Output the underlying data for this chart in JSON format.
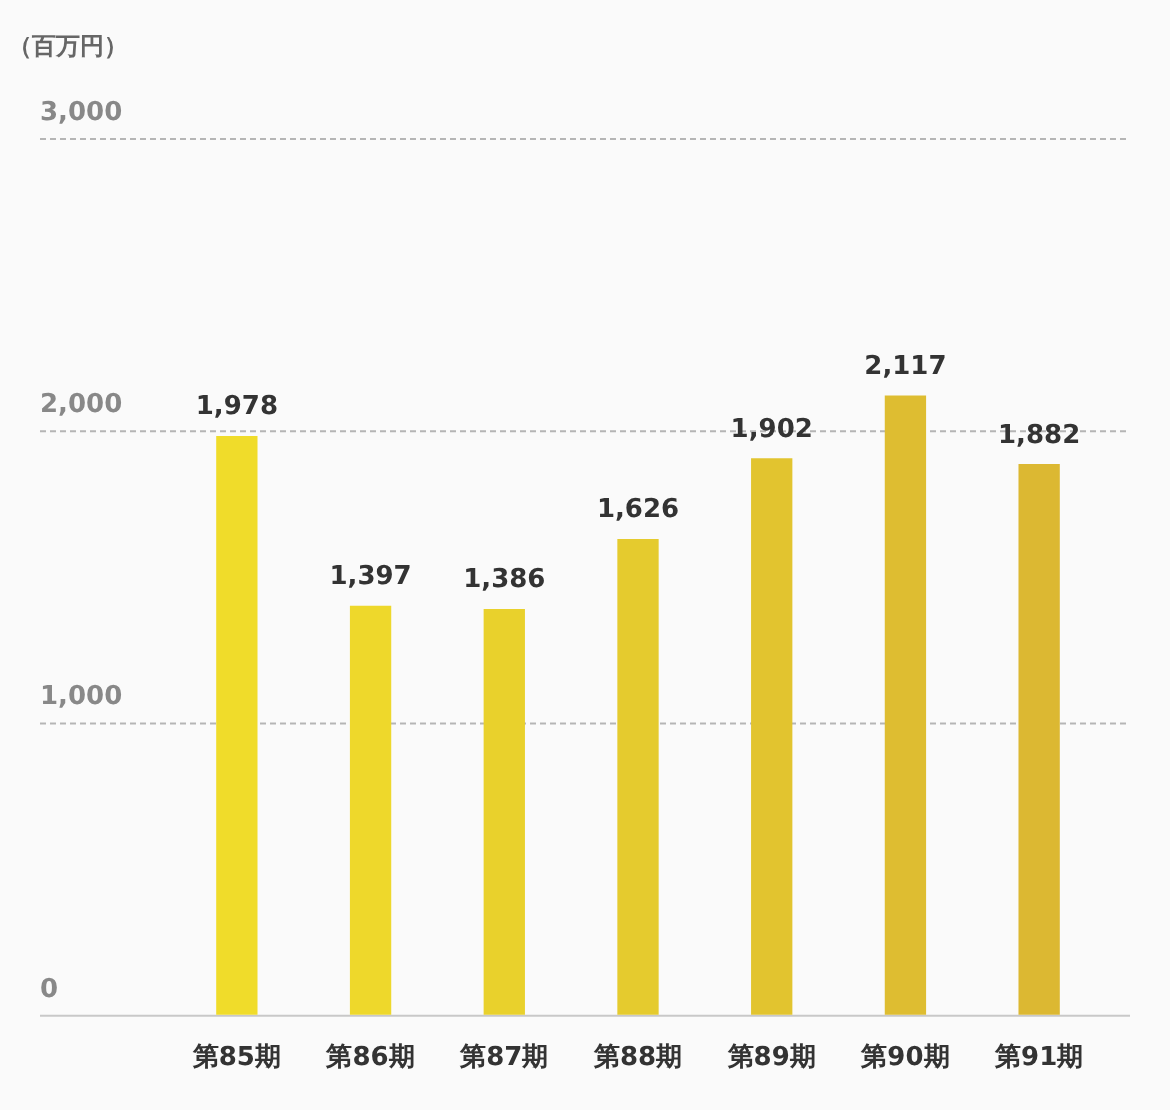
{
  "chart_data": {
    "type": "bar",
    "ylabel": "（百万円）",
    "categories": [
      "第85期",
      "第86期",
      "第87期",
      "第88期",
      "第89期",
      "第90期",
      "第91期"
    ],
    "values": [
      1978,
      1397,
      1386,
      1626,
      1902,
      2117,
      1882
    ],
    "value_labels": [
      "1,978",
      "1,397",
      "1,386",
      "1,626",
      "1,902",
      "2,117",
      "1,882"
    ],
    "colors": [
      "#f0dc2a",
      "#eed82b",
      "#e9d12c",
      "#e5cb2e",
      "#e2c42f",
      "#debd31",
      "#dcb832"
    ],
    "ylim": [
      0,
      3000
    ],
    "yticks": [
      {
        "value": 0,
        "label": "0"
      },
      {
        "value": 1000,
        "label": "1,000"
      },
      {
        "value": 2000,
        "label": "2,000"
      },
      {
        "value": 3000,
        "label": "3,000"
      }
    ],
    "grid": "y",
    "legend": false
  }
}
